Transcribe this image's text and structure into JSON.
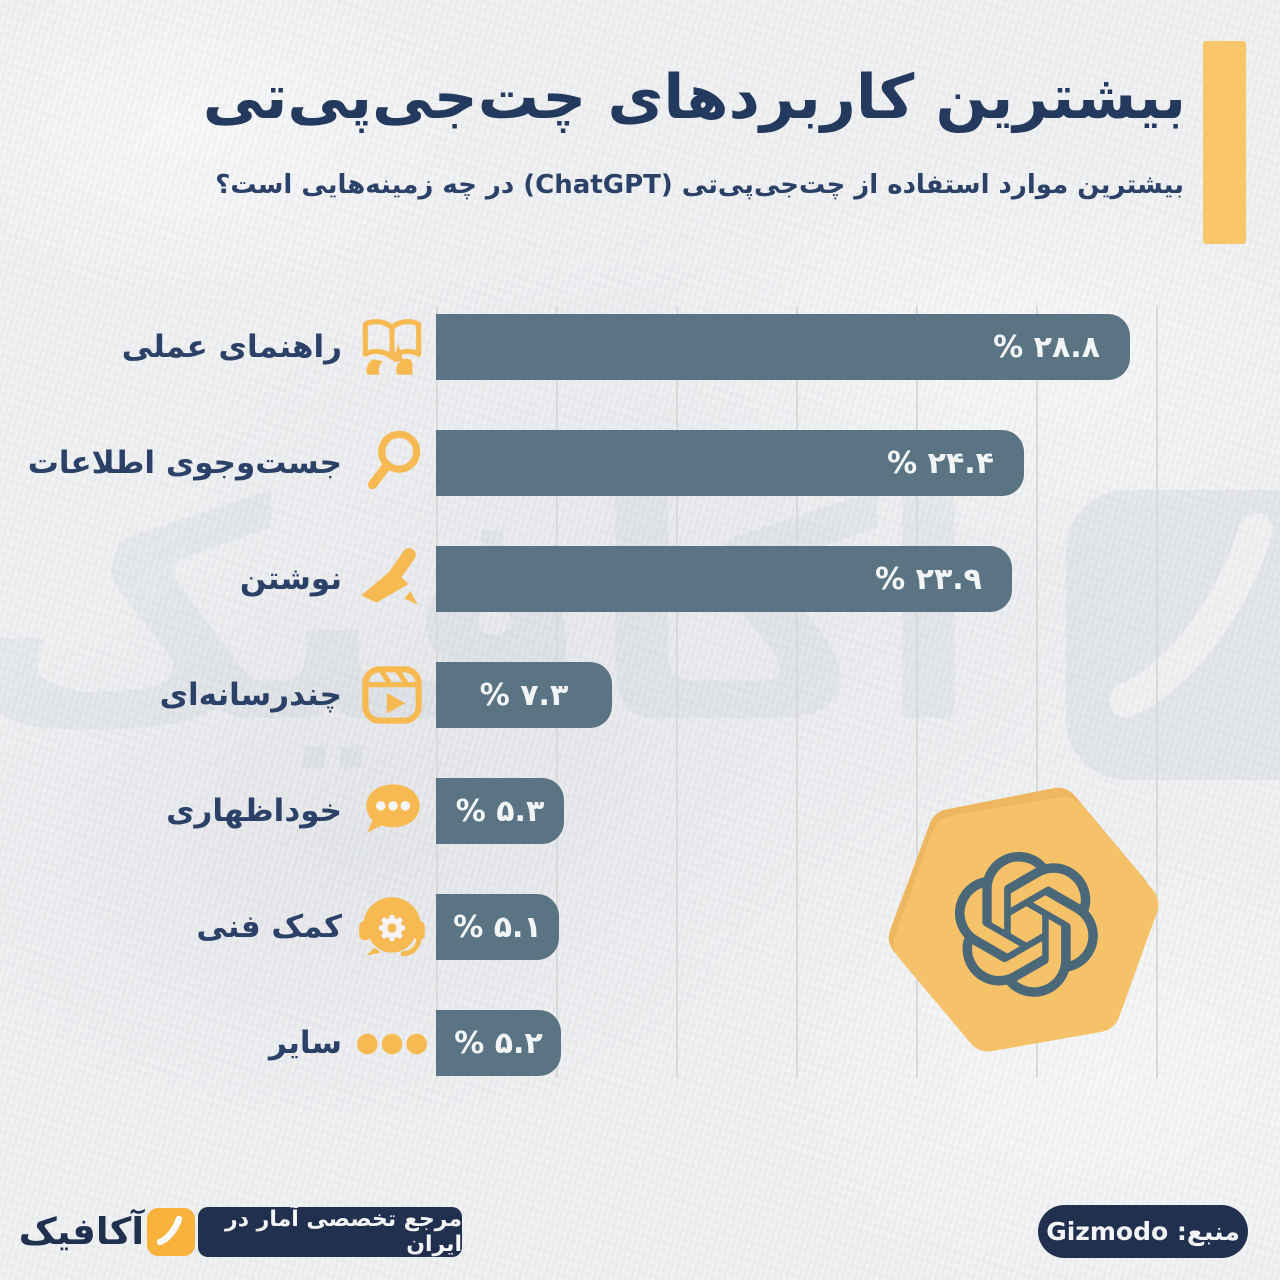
{
  "header": {
    "title": "بیشترین کاربردهای چت‌جی‌پی‌تی",
    "subtitle": "بیشترین موارد استفاده از چت‌جی‌پی‌تی (ChatGPT) در چه زمینه‌هایی است؟",
    "accent_color": "#f9c66a"
  },
  "chart_data": {
    "type": "bar",
    "orientation": "horizontal",
    "title": "بیشترین کاربردهای چت‌جی‌پی‌تی",
    "unit": "%",
    "xlim": [
      0,
      30
    ],
    "grid": true,
    "grid_step": 5,
    "bar_color": "#5a7484",
    "value_text_color": "#f3f6f7",
    "label_color": "#2b4168",
    "categories": [
      "راهنمای عملی",
      "جست‌وجوی اطلاعات",
      "نوشتن",
      "چندرسانه‌ای",
      "خوداظهاری",
      "کمک فنی",
      "سایر"
    ],
    "values": [
      28.8,
      24.4,
      23.9,
      7.3,
      5.3,
      5.1,
      5.2
    ],
    "rows": [
      {
        "label": "راهنمای عملی",
        "value": 28.8,
        "value_label": "% ۲۸.۸",
        "icon": "guide-book-icon"
      },
      {
        "label": "جست‌وجوی اطلاعات",
        "value": 24.4,
        "value_label": "% ۲۴.۴",
        "icon": "search-icon"
      },
      {
        "label": "نوشتن",
        "value": 23.9,
        "value_label": "% ۲۳.۹",
        "icon": "writing-pen-icon"
      },
      {
        "label": "چندرسانه‌ای",
        "value": 7.3,
        "value_label": "% ۷.۳",
        "icon": "multimedia-reels-icon"
      },
      {
        "label": "خوداظهاری",
        "value": 5.3,
        "value_label": "% ۵.۳",
        "icon": "chat-bubble-icon"
      },
      {
        "label": "کمک فنی",
        "value": 5.1,
        "value_label": "% ۵.۱",
        "icon": "technical-support-icon"
      },
      {
        "label": "سایر",
        "value": 5.2,
        "value_label": "% ۵.۲",
        "icon": "more-dots-icon"
      }
    ],
    "icon_color": "#f7ba52"
  },
  "branding": {
    "openai_blob_color": "#f5c169",
    "openai_logo_color": "#4a6878"
  },
  "footer": {
    "left": {
      "wordmark": "آکافیک",
      "tagline": "مرجع تخصصی آمار در ایران"
    },
    "right": {
      "source_label": "منبع: Gizmodo"
    }
  }
}
